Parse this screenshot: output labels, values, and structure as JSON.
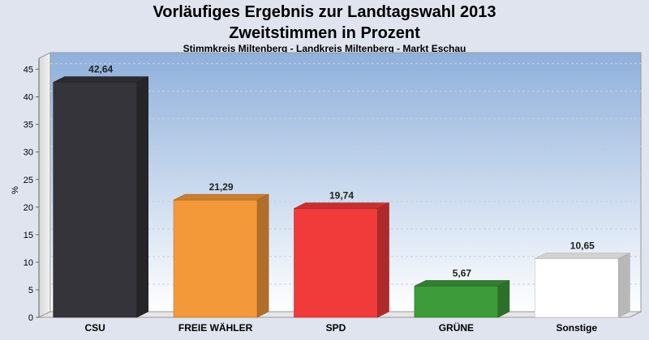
{
  "chart_data": {
    "type": "bar",
    "title": "Vorläufiges Ergebnis zur Landtagswahl 2013",
    "subtitle_line2": "Zweitstimmen in Prozent",
    "subtitle": "Stimmkreis Miltenberg - Landkreis Miltenberg - Markt Eschau",
    "ylabel": "%",
    "ylim": [
      0,
      47
    ],
    "yticks": [
      0,
      5,
      10,
      15,
      20,
      25,
      30,
      35,
      40,
      45
    ],
    "grid": true,
    "categories": [
      "CSU",
      "FREIE WÄHLER",
      "SPD",
      "GRÜNE",
      "Sonstige"
    ],
    "values": [
      42.64,
      21.29,
      19.74,
      5.67,
      10.65
    ],
    "value_labels": [
      "42,64",
      "21,29",
      "19,74",
      "5,67",
      "10,65"
    ],
    "colors": [
      "#34343a",
      "#f4993a",
      "#f13a3a",
      "#3e9b3a",
      "#ffffff"
    ],
    "background_top": "#8fb0db",
    "background_bottom": "#ffffff"
  }
}
